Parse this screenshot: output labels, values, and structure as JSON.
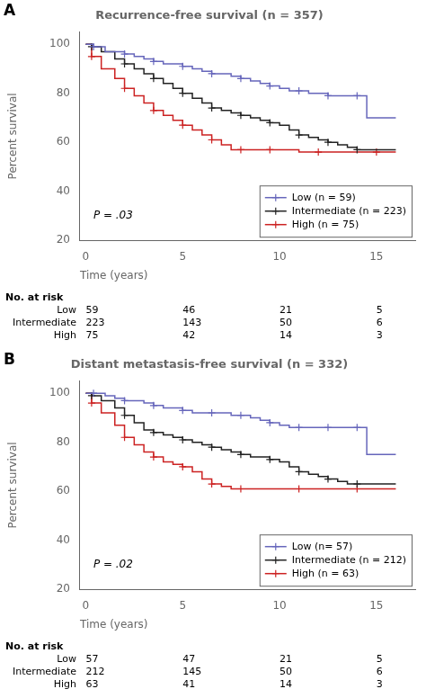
{
  "chart_data": [
    {
      "type": "line",
      "panel_label": "A",
      "title": "Recurrence-free survival (n = 357)",
      "annotation": "P = .03",
      "y_label": "Percent survival",
      "x_label": "Time (years)",
      "xlim": [
        -0.3,
        17
      ],
      "ylim": [
        20,
        105
      ],
      "xticks": [
        0,
        5,
        10,
        15
      ],
      "yticks": [
        20,
        40,
        60,
        80,
        100
      ],
      "grid": false,
      "legend": "lower right",
      "series": [
        {
          "name": "Low (n = 59)",
          "color": "#6666bb",
          "line_style": "step",
          "marker": "+",
          "x": [
            0,
            0.4,
            1,
            1.5,
            2,
            2.5,
            3,
            3.5,
            4,
            4.5,
            5,
            5.5,
            6,
            6.5,
            7,
            7.5,
            8,
            8.5,
            9,
            9.5,
            10,
            10.5,
            11,
            11.5,
            12,
            12.5,
            13,
            13.5,
            14,
            14.5,
            15,
            16
          ],
          "values": [
            100,
            99,
            97,
            97,
            96,
            95,
            94,
            93,
            92,
            92,
            91,
            90,
            89,
            88,
            88,
            87,
            86,
            85,
            84,
            83,
            82,
            81,
            81,
            80,
            80,
            79,
            79,
            79,
            79,
            70,
            70,
            70
          ],
          "censor_x": [
            0.4,
            2,
            3.5,
            5,
            6.5,
            8,
            9.5,
            11,
            12.5,
            14
          ],
          "censor_values": [
            99,
            96,
            93,
            91,
            88,
            86,
            83,
            81,
            79,
            79
          ]
        },
        {
          "name": "Intermediate (n = 223)",
          "color": "#222222",
          "line_style": "step",
          "marker": "+",
          "x": [
            0,
            0.3,
            0.8,
            1.5,
            2,
            2.5,
            3,
            3.5,
            4,
            4.5,
            5,
            5.5,
            6,
            6.5,
            7,
            7.5,
            8,
            8.5,
            9,
            9.5,
            10,
            10.5,
            11,
            11.5,
            12,
            12.5,
            13,
            13.5,
            14,
            14.5,
            15,
            16
          ],
          "values": [
            100,
            99,
            97,
            94,
            92,
            90,
            88,
            86,
            84,
            82,
            80,
            78,
            76,
            74,
            73,
            72,
            71,
            70,
            69,
            68,
            67,
            65,
            63,
            62,
            61,
            60,
            59,
            58,
            57,
            57,
            57,
            57
          ],
          "censor_x": [
            0.3,
            2,
            3.5,
            5,
            6.5,
            8,
            9.5,
            11,
            12.5,
            14
          ],
          "censor_values": [
            99,
            92,
            86,
            80,
            74,
            71,
            68,
            63,
            60,
            57
          ]
        },
        {
          "name": "High (n = 75)",
          "color": "#cc2222",
          "line_style": "step",
          "marker": "+",
          "x": [
            0,
            0.3,
            0.8,
            1.5,
            2,
            2.5,
            3,
            3.5,
            4,
            4.5,
            5,
            5.5,
            6,
            6.5,
            7,
            7.5,
            8,
            8.5,
            9,
            9.5,
            10,
            11,
            12,
            13,
            14,
            15,
            16
          ],
          "values": [
            100,
            95,
            90,
            86,
            82,
            79,
            76,
            73,
            71,
            69,
            67,
            65,
            63,
            61,
            59,
            57,
            57,
            57,
            57,
            57,
            57,
            56,
            56,
            56,
            56,
            56,
            56
          ],
          "censor_x": [
            0.3,
            2,
            3.5,
            5,
            6.5,
            8,
            9.5,
            12,
            15
          ],
          "censor_values": [
            95,
            82,
            73,
            67,
            61,
            57,
            57,
            56,
            56
          ]
        }
      ],
      "risk_table": {
        "header": "No. at risk",
        "x": [
          0,
          5,
          10,
          15
        ],
        "rows": [
          {
            "name": "Low",
            "values": [
              59,
              46,
              21,
              5
            ]
          },
          {
            "name": "Intermediate",
            "values": [
              223,
              143,
              50,
              6
            ]
          },
          {
            "name": "High",
            "values": [
              75,
              42,
              14,
              3
            ]
          }
        ]
      }
    },
    {
      "type": "line",
      "panel_label": "B",
      "title": "Distant metastasis-free survival (n = 332)",
      "annotation": "P = .02",
      "y_label": "Percent survival",
      "x_label": "Time (years)",
      "xlim": [
        -0.3,
        17
      ],
      "ylim": [
        20,
        105
      ],
      "xticks": [
        0,
        5,
        10,
        15
      ],
      "yticks": [
        20,
        40,
        60,
        80,
        100
      ],
      "grid": false,
      "legend": "lower right",
      "series": [
        {
          "name": "Low (n= 57)",
          "color": "#6666bb",
          "line_style": "step",
          "marker": "+",
          "x": [
            0,
            0.4,
            1,
            1.5,
            2,
            2.5,
            3,
            3.5,
            4,
            4.5,
            5,
            5.5,
            6,
            6.5,
            7,
            7.5,
            8,
            8.5,
            9,
            9.5,
            10,
            10.5,
            11,
            11.5,
            12,
            12.5,
            13,
            13.5,
            14,
            14.5,
            15,
            16
          ],
          "values": [
            100,
            100,
            99,
            98,
            97,
            97,
            96,
            95,
            94,
            94,
            93,
            92,
            92,
            92,
            92,
            91,
            91,
            90,
            89,
            88,
            87,
            86,
            86,
            86,
            86,
            86,
            86,
            86,
            86,
            75,
            75,
            75
          ],
          "censor_x": [
            0.4,
            2,
            3.5,
            5,
            6.5,
            8,
            9.5,
            11,
            12.5,
            14
          ],
          "censor_values": [
            100,
            97,
            95,
            93,
            92,
            91,
            88,
            86,
            86,
            86
          ]
        },
        {
          "name": "Intermediate (n = 212)",
          "color": "#222222",
          "line_style": "step",
          "marker": "+",
          "x": [
            0,
            0.3,
            0.8,
            1.5,
            2,
            2.5,
            3,
            3.5,
            4,
            4.5,
            5,
            5.5,
            6,
            6.5,
            7,
            7.5,
            8,
            8.5,
            9,
            9.5,
            10,
            10.5,
            11,
            11.5,
            12,
            12.5,
            13,
            13.5,
            14,
            14.5,
            15,
            16
          ],
          "values": [
            100,
            99,
            97,
            94,
            91,
            88,
            85,
            84,
            83,
            82,
            81,
            80,
            79,
            78,
            77,
            76,
            75,
            74,
            74,
            73,
            72,
            70,
            68,
            67,
            66,
            65,
            64,
            63,
            63,
            63,
            63,
            63
          ],
          "censor_x": [
            0.3,
            2,
            3.5,
            5,
            6.5,
            8,
            9.5,
            11,
            12.5,
            14
          ],
          "censor_values": [
            99,
            91,
            84,
            81,
            78,
            75,
            73,
            68,
            65,
            63
          ]
        },
        {
          "name": "High (n = 63)",
          "color": "#cc2222",
          "line_style": "step",
          "marker": "+",
          "x": [
            0,
            0.3,
            0.8,
            1.5,
            2,
            2.5,
            3,
            3.5,
            4,
            4.5,
            5,
            5.5,
            6,
            6.5,
            7,
            7.5,
            8,
            9,
            10,
            11,
            12,
            13,
            14,
            15,
            16
          ],
          "values": [
            100,
            96,
            92,
            87,
            82,
            79,
            76,
            74,
            72,
            71,
            70,
            68,
            65,
            63,
            62,
            61,
            61,
            61,
            61,
            61,
            61,
            61,
            61,
            61,
            61
          ],
          "censor_x": [
            0.3,
            2,
            3.5,
            5,
            6.5,
            8,
            11,
            14
          ],
          "censor_values": [
            96,
            82,
            74,
            70,
            63,
            61,
            61,
            61
          ]
        }
      ],
      "risk_table": {
        "header": "No. at risk",
        "x": [
          0,
          5,
          10,
          15
        ],
        "rows": [
          {
            "name": "Low",
            "values": [
              57,
              47,
              21,
              5
            ]
          },
          {
            "name": "Intermediate",
            "values": [
              212,
              145,
              50,
              6
            ]
          },
          {
            "name": "High",
            "values": [
              63,
              41,
              14,
              3
            ]
          }
        ]
      }
    }
  ]
}
